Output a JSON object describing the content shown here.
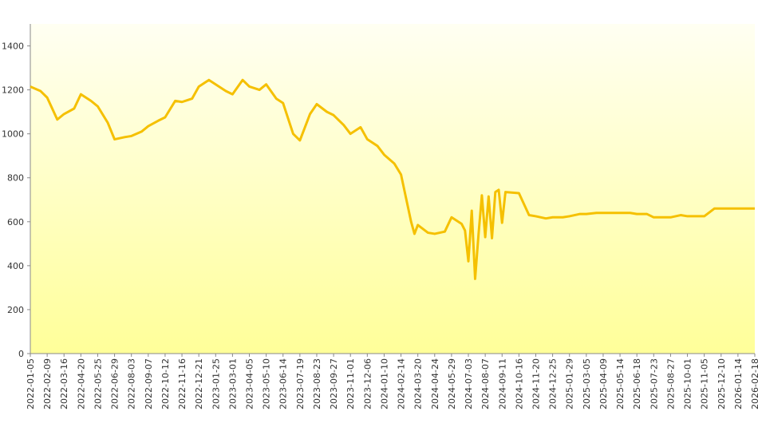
{
  "chart_data": {
    "type": "line",
    "x": [
      "2022-01-05",
      "2022-01-26",
      "2022-02-09",
      "2022-03-02",
      "2022-03-16",
      "2022-04-06",
      "2022-04-20",
      "2022-05-11",
      "2022-05-25",
      "2022-06-15",
      "2022-06-29",
      "2022-07-20",
      "2022-08-03",
      "2022-08-24",
      "2022-09-07",
      "2022-09-28",
      "2022-10-12",
      "2022-11-02",
      "2022-11-16",
      "2022-12-07",
      "2022-12-21",
      "2023-01-11",
      "2023-01-25",
      "2023-02-15",
      "2023-03-01",
      "2023-03-22",
      "2023-04-05",
      "2023-04-26",
      "2023-05-10",
      "2023-05-31",
      "2023-06-14",
      "2023-07-05",
      "2023-07-19",
      "2023-08-09",
      "2023-08-23",
      "2023-09-13",
      "2023-09-27",
      "2023-10-18",
      "2023-11-01",
      "2023-11-22",
      "2023-12-06",
      "2023-12-27",
      "2024-01-10",
      "2024-01-31",
      "2024-02-14",
      "2024-03-06",
      "2024-03-13",
      "2024-03-20",
      "2024-04-10",
      "2024-04-24",
      "2024-05-15",
      "2024-05-29",
      "2024-06-19",
      "2024-06-26",
      "2024-07-03",
      "2024-07-10",
      "2024-07-17",
      "2024-07-24",
      "2024-07-31",
      "2024-08-07",
      "2024-08-14",
      "2024-08-21",
      "2024-08-28",
      "2024-09-04",
      "2024-09-11",
      "2024-09-18",
      "2024-10-16",
      "2024-11-06",
      "2024-11-20",
      "2024-12-11",
      "2024-12-25",
      "2025-01-15",
      "2025-01-29",
      "2025-02-19",
      "2025-03-05",
      "2025-03-26",
      "2025-04-09",
      "2025-04-30",
      "2025-05-14",
      "2025-06-04",
      "2025-06-18",
      "2025-07-09",
      "2025-07-23",
      "2025-08-13",
      "2025-08-27",
      "2025-09-17",
      "2025-10-01",
      "2025-10-22",
      "2025-11-05",
      "2025-11-26",
      "2025-12-10",
      "2025-12-31",
      "2026-01-14",
      "2026-02-04",
      "2026-02-18"
    ],
    "series": [
      {
        "color": "#f5c000",
        "values": [
          1215,
          1195,
          1165,
          1065,
          1090,
          1115,
          1180,
          1150,
          1125,
          1050,
          975,
          985,
          990,
          1010,
          1035,
          1060,
          1075,
          1150,
          1145,
          1160,
          1215,
          1245,
          1225,
          1195,
          1180,
          1245,
          1215,
          1200,
          1225,
          1160,
          1140,
          1000,
          970,
          1090,
          1135,
          1100,
          1085,
          1040,
          1000,
          1030,
          975,
          945,
          905,
          865,
          815,
          600,
          545,
          585,
          550,
          545,
          555,
          620,
          590,
          560,
          420,
          650,
          340,
          540,
          720,
          530,
          715,
          525,
          735,
          745,
          595,
          735,
          730,
          630,
          625,
          615,
          620,
          620,
          625,
          635,
          635,
          640,
          640,
          640,
          640,
          640,
          635,
          635,
          620,
          620,
          620,
          630,
          625,
          625,
          625,
          660,
          660,
          660,
          660,
          660,
          660
        ]
      }
    ],
    "xlim": [
      "2022-01-05",
      "2026-02-18"
    ],
    "xticks": [
      "2022-01-05",
      "2022-02-09",
      "2022-03-16",
      "2022-04-20",
      "2022-05-25",
      "2022-06-29",
      "2022-08-03",
      "2022-09-07",
      "2022-10-12",
      "2022-11-16",
      "2022-12-21",
      "2023-01-25",
      "2023-03-01",
      "2023-04-05",
      "2023-05-10",
      "2023-06-14",
      "2023-07-19",
      "2023-08-23",
      "2023-09-27",
      "2023-11-01",
      "2023-12-06",
      "2024-01-10",
      "2024-02-14",
      "2024-03-20",
      "2024-04-24",
      "2024-05-29",
      "2024-07-03",
      "2024-08-07",
      "2024-09-11",
      "2024-10-16",
      "2024-11-20",
      "2024-12-25",
      "2025-01-29",
      "2025-03-05",
      "2025-04-09",
      "2025-05-14",
      "2025-06-18",
      "2025-07-23",
      "2025-08-27",
      "2025-10-01",
      "2025-11-05",
      "2025-12-10",
      "2026-01-14",
      "2026-02-18"
    ],
    "ylim": [
      0,
      1500
    ],
    "yticks": [
      0,
      200,
      400,
      600,
      800,
      1000,
      1200,
      1400
    ]
  }
}
